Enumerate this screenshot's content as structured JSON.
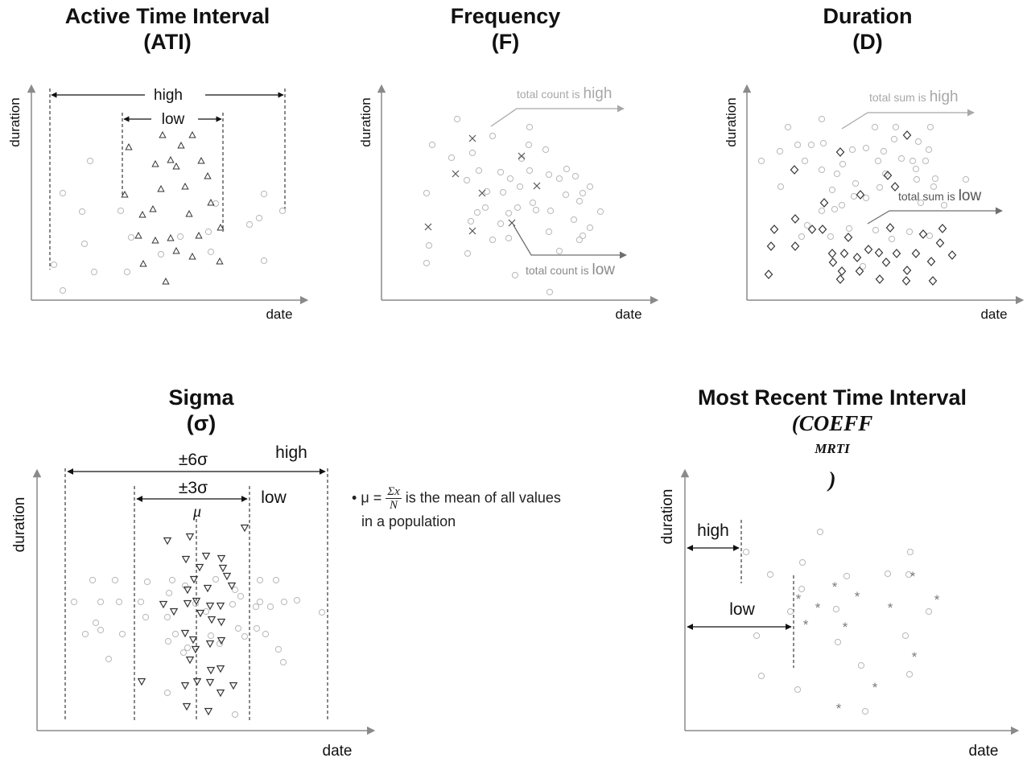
{
  "axes": {
    "x_label": "date",
    "y_label": "duration"
  },
  "panels": {
    "ati": {
      "title": "Active Time Interval",
      "subtitle": "(ATI)",
      "labels": {
        "high": "high",
        "low": "low"
      }
    },
    "frequency": {
      "title": "Frequency",
      "subtitle": "(F)",
      "labels": {
        "high_prefix": "total count is ",
        "high_word": "high",
        "low_prefix": "total count is ",
        "low_word": "low"
      }
    },
    "duration": {
      "title": "Duration",
      "subtitle": "(D)",
      "labels": {
        "high_prefix": "total sum is ",
        "high_word": "high",
        "low_prefix": "total sum is ",
        "low_word": "low"
      }
    },
    "sigma": {
      "title": "Sigma",
      "subtitle": "(σ)",
      "labels": {
        "six_sigma": "±6σ",
        "three_sigma": "±3σ",
        "mu": "μ",
        "high": "high",
        "low": "low"
      },
      "note": {
        "bullet": "•",
        "lead": "μ = ",
        "frac_num": "Σx",
        "frac_den": "N",
        "tail": " is the mean of all values",
        "line2": "in a population"
      }
    },
    "mrti": {
      "title": "Most Recent Time Interval",
      "subtitle_main": "(COEFF",
      "subtitle_sup": "MRTI",
      "subtitle_close": ")",
      "labels": {
        "high": "high",
        "low": "low"
      }
    }
  },
  "colors": {
    "axis": "#8a8a8a",
    "faint_marker": "#bdbdbd",
    "dark_marker": "#333333",
    "star": "#7a7a7a",
    "arrow_light": "#a8a8a8",
    "arrow_mid": "#6f6f6f"
  }
}
